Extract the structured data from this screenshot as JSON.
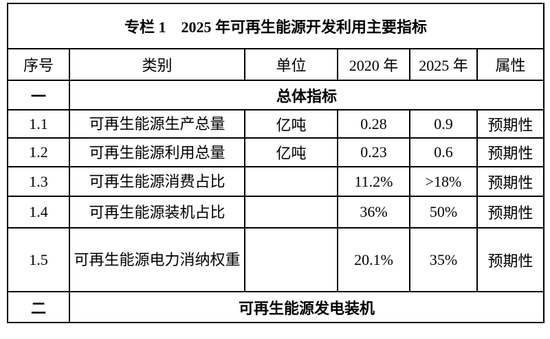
{
  "table": {
    "title": "专栏 1　2025 年可再生能源开发利用主要指标",
    "columns": [
      "序号",
      "类别",
      "单位",
      "2020 年",
      "2025 年",
      "属性"
    ],
    "rows": [
      {
        "type": "section",
        "no": "一",
        "label": "总体指标"
      },
      {
        "type": "data",
        "no": "1.1",
        "category": "可再生能源生产总量",
        "unit": "亿吨",
        "y2020": "0.28",
        "y2025": "0.9",
        "attr": "预期性"
      },
      {
        "type": "data",
        "no": "1.2",
        "category": "可再生能源利用总量",
        "unit": "亿吨",
        "y2020": "0.23",
        "y2025": "0.6",
        "attr": "预期性"
      },
      {
        "type": "data",
        "no": "1.3",
        "category": "可再生能源消费占比",
        "unit": "",
        "y2020": "11.2%",
        "y2025": ">18%",
        "attr": "预期性"
      },
      {
        "type": "data",
        "no": "1.4",
        "category": "可再生能源装机占比",
        "unit": "",
        "y2020": "36%",
        "y2025": "50%",
        "attr": "预期性"
      },
      {
        "type": "data",
        "no": "1.5",
        "category": "可再生能源电力消纳权重",
        "unit": "",
        "y2020": "20.1%",
        "y2025": "35%",
        "attr": "预期性"
      },
      {
        "type": "section",
        "no": "二",
        "label": "可再生能源发电装机"
      }
    ],
    "colors": {
      "border": "#000000",
      "text": "#000000",
      "background": "#ffffff"
    }
  }
}
